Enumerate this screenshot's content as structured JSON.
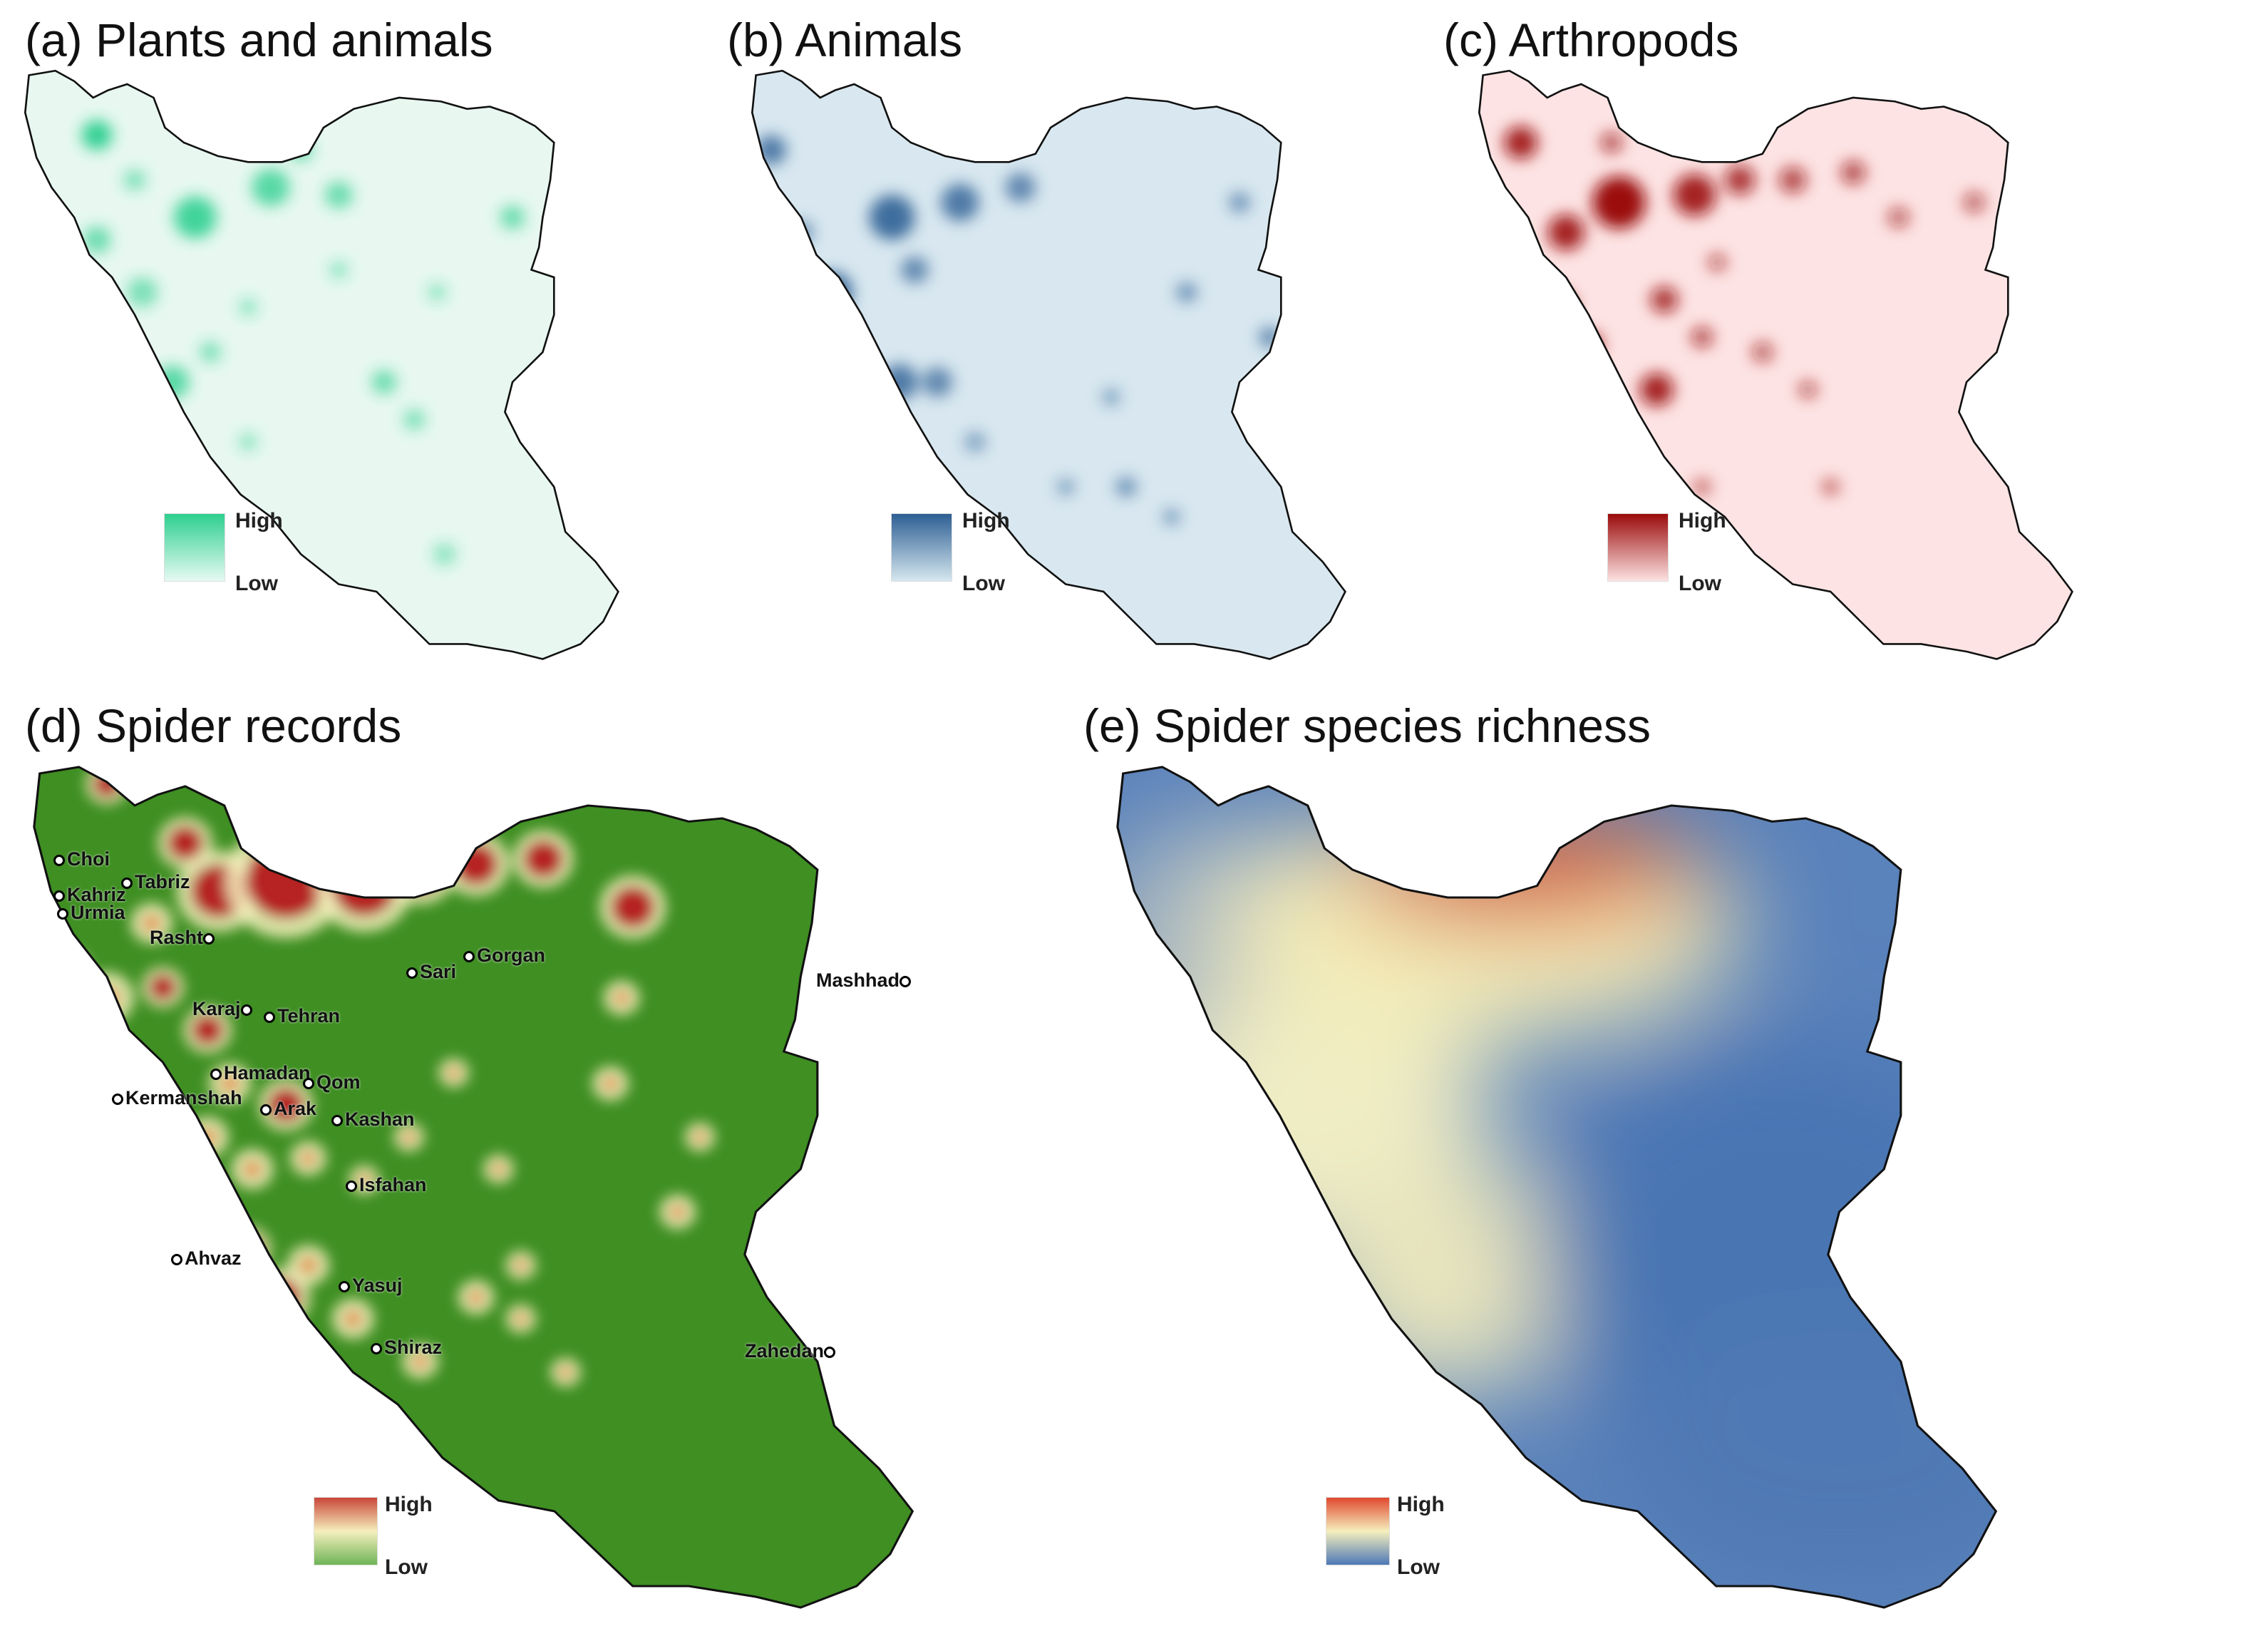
{
  "panels": {
    "a": {
      "title": "(a) Plants and animals",
      "low_color": "#e6faf3",
      "high_color": "#2ecf8f",
      "legend_high": "High",
      "legend_low": "Low"
    },
    "b": {
      "title": "(b) Animals",
      "low_color": "#d6e7ef",
      "high_color": "#2d5f94",
      "legend_high": "High",
      "legend_low": "Low"
    },
    "c": {
      "title": "(c) Arthropods",
      "low_color": "#fde2e2",
      "high_color": "#9b0b0b",
      "legend_high": "High",
      "legend_low": "Low"
    },
    "d": {
      "title": "(d) Spider records",
      "base_color": "#3f8f23",
      "mid_color": "#f5f0bc",
      "high_color": "#b3161c",
      "legend_high": "High",
      "legend_low": "Low"
    },
    "e": {
      "title": "(e) Spider species richness",
      "low_color": "#4a76b5",
      "mid_color": "#f7f3c0",
      "high_color": "#c92b22",
      "legend_high": "High",
      "legend_low": "Low"
    }
  },
  "cities": [
    {
      "name": "Choi"
    },
    {
      "name": "Kahriz"
    },
    {
      "name": "Urmia"
    },
    {
      "name": "Tabriz"
    },
    {
      "name": "Rasht"
    },
    {
      "name": "Sari"
    },
    {
      "name": "Gorgan"
    },
    {
      "name": "Mashhad"
    },
    {
      "name": "Karaj"
    },
    {
      "name": "Tehran"
    },
    {
      "name": "Hamadan"
    },
    {
      "name": "Qom"
    },
    {
      "name": "Kermanshah"
    },
    {
      "name": "Arak"
    },
    {
      "name": "Kashan"
    },
    {
      "name": "Isfahan"
    },
    {
      "name": "Ahvaz"
    },
    {
      "name": "Yasuj"
    },
    {
      "name": "Shiraz"
    },
    {
      "name": "Zahedan"
    }
  ]
}
